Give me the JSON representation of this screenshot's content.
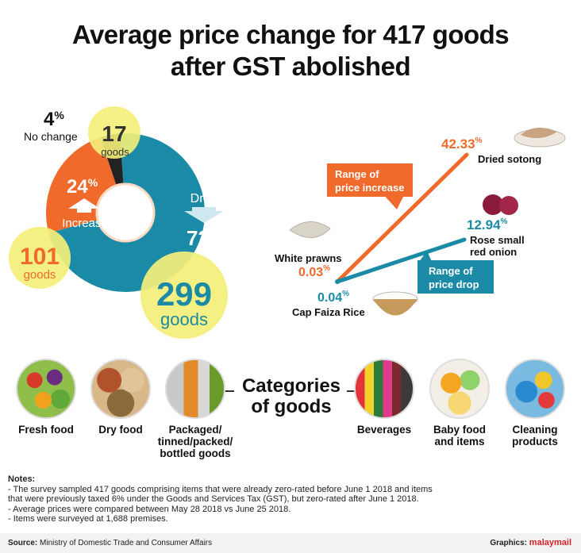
{
  "title_line1": "Average price change for 417 goods",
  "title_line2": "after GST abolished",
  "chart_data": [
    {
      "type": "pie",
      "title": "",
      "donut": true,
      "slices": [
        {
          "label": "Drop",
          "percent": 72,
          "goods": 299,
          "color": "#1b8aa6"
        },
        {
          "label": "Increase",
          "percent": 24,
          "goods": 101,
          "color": "#ef6a2b"
        },
        {
          "label": "No change",
          "percent": 4,
          "goods": 17,
          "color": "#222222"
        }
      ],
      "text": {
        "drop_label": "Drop",
        "drop_pct": "72",
        "drop_goods_num": "299",
        "drop_goods_word": "goods",
        "inc_label": "Increase",
        "inc_pct": "24",
        "inc_goods_num": "101",
        "inc_goods_word": "goods",
        "nc_label": "No change",
        "nc_pct": "4",
        "nc_goods_num": "17",
        "nc_goods_word": "goods",
        "pct_sign": "%"
      }
    },
    {
      "type": "line",
      "title": "",
      "series": [
        {
          "name": "Range of price increase",
          "from": {
            "item": "White prawns",
            "value": 0.03
          },
          "to": {
            "item": "Dried sotong",
            "value": 42.33
          },
          "color": "#ef6a2b"
        },
        {
          "name": "Range of price drop",
          "from": {
            "item": "Cap Faiza Rice",
            "value": 0.04
          },
          "to": {
            "item": "Rose small red onion",
            "value": 12.94
          },
          "color": "#1b8aa6"
        }
      ],
      "text": {
        "inc_box_1": "Range of",
        "inc_box_2": "price increase",
        "drop_box_1": "Range of",
        "drop_box_2": "price drop",
        "sotong_val": "42.33",
        "sotong_name": "Dried sotong",
        "onion_val": "12.94",
        "onion_name_1": "Rose small",
        "onion_name_2": "red onion",
        "prawn_name": "White prawns",
        "prawn_val": "0.03",
        "rice_val": "0.04",
        "rice_name": "Cap Faiza Rice",
        "pct_sign": "%"
      }
    }
  ],
  "categories_title_1": "Categories",
  "categories_title_2": "of goods",
  "categories": [
    {
      "name": "fresh-food",
      "line1": "Fresh food",
      "line2": "",
      "line3": ""
    },
    {
      "name": "dry-food",
      "line1": "Dry food",
      "line2": "",
      "line3": ""
    },
    {
      "name": "packaged",
      "line1": "Packaged/",
      "line2": "tinned/packed/",
      "line3": "bottled goods"
    },
    {
      "name": "beverages",
      "line1": "Beverages",
      "line2": "",
      "line3": ""
    },
    {
      "name": "baby-food",
      "line1": "Baby food",
      "line2": "and items",
      "line3": ""
    },
    {
      "name": "cleaning",
      "line1": "Cleaning",
      "line2": "products",
      "line3": ""
    }
  ],
  "notes": {
    "heading": "Notes:",
    "line1": "- The survey sampled 417 goods comprising items that were already zero-rated before June 1 2018 and items",
    "line2": "that were previously taxed 6% under the Goods and Services Tax (GST), but zero-rated after June 1 2018.",
    "line3": "- Average prices were compared between May 28 2018 vs June 25 2018.",
    "line4": "- Items were surveyed at 1,688 premises."
  },
  "source_label": "Source:",
  "source_text": "Ministry of Domestic Trade and Consumer Affairs",
  "credit_label": "Graphics:",
  "credit_brand": "malaymail"
}
